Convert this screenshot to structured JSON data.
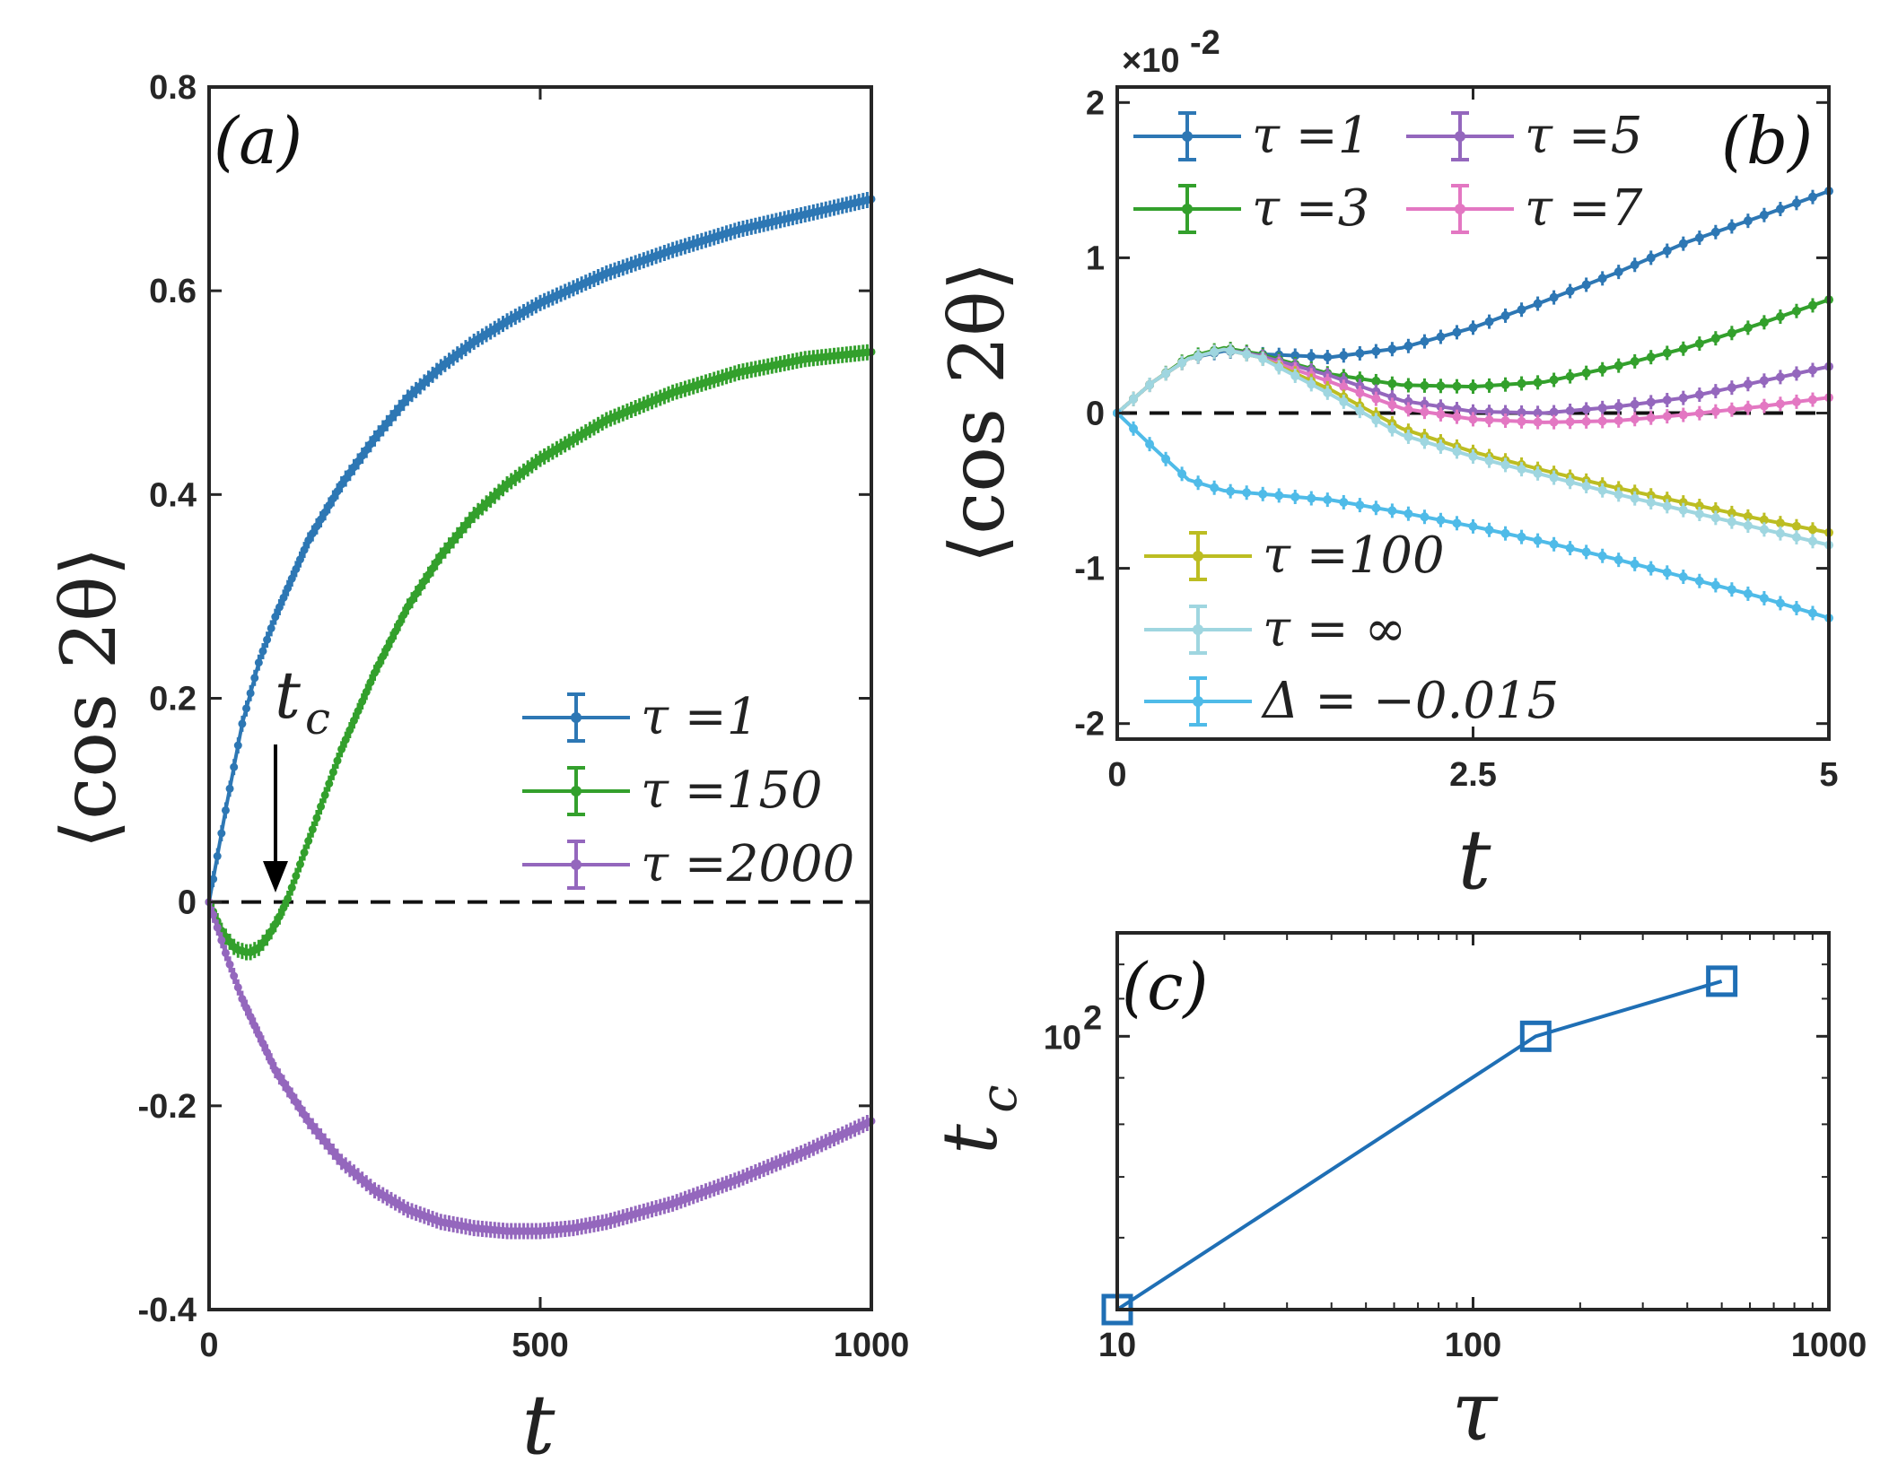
{
  "colors": {
    "blue": "#2d77b4",
    "green": "#33a02c",
    "purple": "#9467bd",
    "pink": "#e377c2",
    "olive": "#bcbd22",
    "lightcyan": "#9fd6e0",
    "skyblue": "#4fbbe8",
    "line": "#1f6fb5",
    "axis": "#262626"
  },
  "chart_data": [
    {
      "id": "a",
      "type": "line",
      "panel_label": "(a)",
      "xlabel": "t",
      "ylabel": "⟨cos 2θ⟩",
      "xlim": [
        0,
        1000
      ],
      "ylim": [
        -0.4,
        0.8
      ],
      "xticks": [
        0,
        500,
        1000
      ],
      "xtick_labels": [
        "0",
        "500",
        "1000"
      ],
      "yticks": [
        -0.4,
        -0.2,
        0,
        0.2,
        0.4,
        0.6,
        0.8
      ],
      "ytick_labels": [
        "-0.4",
        "-0.2",
        "0",
        "0.2",
        "0.4",
        "0.6",
        "0.8"
      ],
      "reference_line": {
        "y": 0,
        "style": "dashed"
      },
      "annotation": {
        "text": "t",
        "subscript": "c",
        "arrow_to": [
          115,
          0
        ]
      },
      "legend": [
        {
          "label": "τ =1",
          "color_key": "blue"
        },
        {
          "label": "τ =150",
          "color_key": "green"
        },
        {
          "label": "τ =2000",
          "color_key": "purple"
        }
      ],
      "series": [
        {
          "name": "τ =1",
          "color_key": "blue",
          "x": [
            0,
            25,
            50,
            75,
            100,
            150,
            200,
            250,
            300,
            350,
            400,
            450,
            500,
            600,
            700,
            800,
            900,
            1000
          ],
          "y": [
            0,
            0.09,
            0.175,
            0.235,
            0.28,
            0.355,
            0.41,
            0.455,
            0.495,
            0.525,
            0.55,
            0.57,
            0.588,
            0.617,
            0.64,
            0.66,
            0.675,
            0.69
          ]
        },
        {
          "name": "τ =150",
          "color_key": "green",
          "x": [
            0,
            20,
            40,
            60,
            75,
            90,
            105,
            120,
            150,
            200,
            250,
            300,
            350,
            400,
            450,
            500,
            600,
            700,
            800,
            900,
            1000
          ],
          "y": [
            0,
            -0.03,
            -0.046,
            -0.05,
            -0.045,
            -0.033,
            -0.016,
            0.005,
            0.06,
            0.15,
            0.225,
            0.29,
            0.34,
            0.38,
            0.41,
            0.435,
            0.473,
            0.5,
            0.52,
            0.533,
            0.54
          ]
        },
        {
          "name": "τ =2000",
          "color_key": "purple",
          "x": [
            0,
            25,
            50,
            100,
            150,
            200,
            250,
            300,
            350,
            400,
            450,
            500,
            550,
            600,
            700,
            800,
            900,
            1000
          ],
          "y": [
            0,
            -0.05,
            -0.095,
            -0.165,
            -0.215,
            -0.255,
            -0.283,
            -0.302,
            -0.314,
            -0.32,
            -0.323,
            -0.323,
            -0.32,
            -0.314,
            -0.296,
            -0.272,
            -0.245,
            -0.215
          ]
        }
      ]
    },
    {
      "id": "b",
      "type": "line",
      "panel_label": "(b)",
      "xlabel": "t",
      "ylabel": "⟨cos 2θ⟩",
      "scale_label": "×10",
      "scale_exponent": "-2",
      "xlim": [
        0,
        5
      ],
      "ylim": [
        -2.1,
        2.1
      ],
      "xticks": [
        0,
        2.5,
        5
      ],
      "xtick_labels": [
        "0",
        "2.5",
        "5"
      ],
      "yticks": [
        -2,
        -1,
        0,
        1,
        2
      ],
      "ytick_labels": [
        "-2",
        "-1",
        "0",
        "1",
        "2"
      ],
      "reference_line": {
        "y": 0,
        "style": "dashed"
      },
      "legend": [
        {
          "label": "τ =1",
          "color_key": "blue"
        },
        {
          "label": "τ =5",
          "color_key": "purple"
        },
        {
          "label": "τ =3",
          "color_key": "green"
        },
        {
          "label": "τ =7",
          "color_key": "pink"
        },
        {
          "label": "τ =100",
          "color_key": "olive"
        },
        {
          "label": "τ = ∞",
          "color_key": "lightcyan"
        },
        {
          "label": "Δ = −0.015",
          "color_key": "skyblue"
        }
      ],
      "series": [
        {
          "name": "τ =1",
          "color_key": "blue",
          "x": [
            0,
            0.25,
            0.5,
            0.75,
            1,
            1.5,
            2,
            2.5,
            3,
            3.5,
            4,
            4.5,
            5
          ],
          "y": [
            0,
            0.2,
            0.35,
            0.4,
            0.38,
            0.36,
            0.42,
            0.55,
            0.72,
            0.9,
            1.1,
            1.26,
            1.43
          ]
        },
        {
          "name": "τ =3",
          "color_key": "green",
          "x": [
            0,
            0.25,
            0.5,
            0.75,
            1,
            1.5,
            2,
            2.5,
            3,
            3.5,
            4,
            4.5,
            5
          ],
          "y": [
            0,
            0.2,
            0.36,
            0.42,
            0.38,
            0.25,
            0.18,
            0.17,
            0.2,
            0.3,
            0.42,
            0.57,
            0.73
          ]
        },
        {
          "name": "τ =5",
          "color_key": "purple",
          "x": [
            0,
            0.25,
            0.5,
            0.75,
            1,
            1.5,
            2,
            2.5,
            3,
            3.5,
            4,
            4.5,
            5
          ],
          "y": [
            0,
            0.2,
            0.35,
            0.41,
            0.37,
            0.24,
            0.08,
            0.01,
            0,
            0.04,
            0.1,
            0.2,
            0.3
          ]
        },
        {
          "name": "τ =7",
          "color_key": "pink",
          "x": [
            0,
            0.25,
            0.5,
            0.75,
            1,
            1.5,
            2,
            2.5,
            3,
            3.5,
            4,
            4.5,
            5
          ],
          "y": [
            0,
            0.2,
            0.35,
            0.41,
            0.36,
            0.2,
            0.03,
            -0.04,
            -0.06,
            -0.05,
            -0.01,
            0.04,
            0.1
          ]
        },
        {
          "name": "τ =100",
          "color_key": "olive",
          "x": [
            0,
            0.25,
            0.5,
            0.75,
            1,
            1.5,
            2,
            2.5,
            3,
            3.5,
            4,
            4.5,
            5
          ],
          "y": [
            0,
            0.2,
            0.35,
            0.41,
            0.36,
            0.15,
            -0.1,
            -0.25,
            -0.37,
            -0.48,
            -0.58,
            -0.68,
            -0.77
          ]
        },
        {
          "name": "τ = ∞",
          "color_key": "lightcyan",
          "x": [
            0,
            0.25,
            0.5,
            0.75,
            1,
            1.5,
            2,
            2.5,
            3,
            3.5,
            4,
            4.5,
            5
          ],
          "y": [
            0,
            0.2,
            0.35,
            0.41,
            0.36,
            0.12,
            -0.14,
            -0.28,
            -0.4,
            -0.52,
            -0.63,
            -0.74,
            -0.85
          ]
        },
        {
          "name": "Δ = −0.015",
          "color_key": "skyblue",
          "x": [
            0,
            0.25,
            0.5,
            0.75,
            1,
            1.5,
            2,
            2.5,
            3,
            3.5,
            4,
            4.5,
            5
          ],
          "y": [
            0,
            -0.22,
            -0.43,
            -0.5,
            -0.52,
            -0.56,
            -0.64,
            -0.73,
            -0.83,
            -0.94,
            -1.06,
            -1.18,
            -1.32
          ]
        }
      ]
    },
    {
      "id": "c",
      "type": "line",
      "panel_label": "(c)",
      "xlabel": "τ",
      "ylabel": "t",
      "ylabel_subscript": "c",
      "xscale": "log",
      "yscale": "log",
      "xlim": [
        10,
        1000
      ],
      "ylim": [
        50,
        130
      ],
      "xticks": [
        10,
        100,
        1000
      ],
      "xtick_labels": [
        "10",
        "100",
        "1000"
      ],
      "yticks": [
        100
      ],
      "ytick_base": "10",
      "ytick_exponent": "2",
      "legend": [],
      "series": [
        {
          "name": "t_c",
          "color_key": "line",
          "marker": "square",
          "x": [
            10,
            150,
            500
          ],
          "y": [
            50,
            100,
            115
          ]
        }
      ]
    }
  ]
}
